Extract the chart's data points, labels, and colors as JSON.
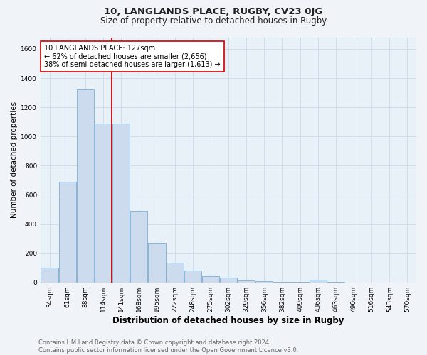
{
  "title_line1": "10, LANGLANDS PLACE, RUGBY, CV23 0JG",
  "title_line2": "Size of property relative to detached houses in Rugby",
  "xlabel": "Distribution of detached houses by size in Rugby",
  "ylabel": "Number of detached properties",
  "categories": [
    "34sqm",
    "61sqm",
    "88sqm",
    "114sqm",
    "141sqm",
    "168sqm",
    "195sqm",
    "222sqm",
    "248sqm",
    "275sqm",
    "302sqm",
    "329sqm",
    "356sqm",
    "382sqm",
    "409sqm",
    "436sqm",
    "463sqm",
    "490sqm",
    "516sqm",
    "543sqm",
    "570sqm"
  ],
  "values": [
    100,
    690,
    1320,
    1090,
    1090,
    490,
    270,
    135,
    80,
    40,
    35,
    15,
    10,
    5,
    5,
    20,
    5,
    0,
    0,
    0,
    0
  ],
  "bar_color": "#ccdcee",
  "bar_edge_color": "#7aafd4",
  "bar_width": 0.97,
  "vline_x_index": 3.47,
  "vline_color": "#cc0000",
  "annotation_line1": "10 LANGLANDS PLACE: 127sqm",
  "annotation_line2": "← 62% of detached houses are smaller (2,656)",
  "annotation_line3": "38% of semi-detached houses are larger (1,613) →",
  "annotation_box_color": "#ffffff",
  "annotation_box_edge_color": "#cc0000",
  "ylim": [
    0,
    1680
  ],
  "yticks": [
    0,
    200,
    400,
    600,
    800,
    1000,
    1200,
    1400,
    1600
  ],
  "grid_color": "#d0dceb",
  "plot_bg_color": "#e8f0f8",
  "fig_bg_color": "#f0f4f9",
  "footer_text": "Contains HM Land Registry data © Crown copyright and database right 2024.\nContains public sector information licensed under the Open Government Licence v3.0.",
  "fig_width": 6.0,
  "fig_height": 5.0,
  "title1_fontsize": 9.5,
  "title2_fontsize": 8.5,
  "xlabel_fontsize": 8.5,
  "ylabel_fontsize": 7.5,
  "tick_fontsize": 6.5,
  "annot_fontsize": 7.0,
  "footer_fontsize": 6.0
}
